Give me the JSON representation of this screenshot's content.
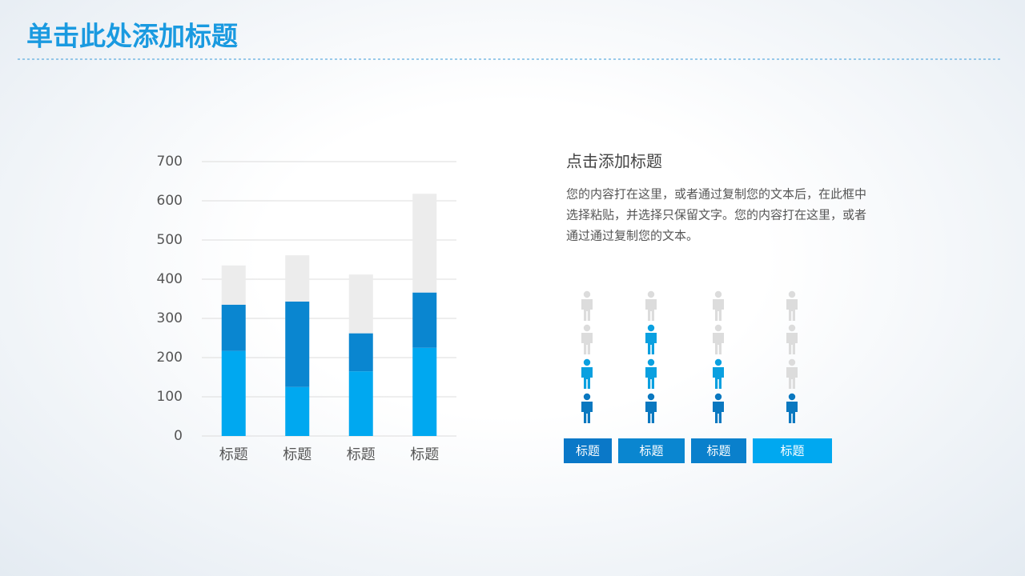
{
  "header": {
    "title": "单击此处添加标题"
  },
  "chart_data": {
    "type": "stacked_bar",
    "categories": [
      "标题",
      "标题",
      "标题",
      "标题"
    ],
    "series": [
      {
        "color": "#00a8f0",
        "values": [
          217,
          125,
          165,
          225
        ]
      },
      {
        "color": "#0a86d0",
        "values": [
          118,
          218,
          97,
          141
        ]
      },
      {
        "color": "#ececec",
        "values": [
          100,
          118,
          150,
          252
        ]
      }
    ],
    "ylim": [
      0,
      700
    ],
    "yticks": [
      0,
      100,
      200,
      300,
      400,
      500,
      600,
      700
    ],
    "grid": true
  },
  "text_block": {
    "heading": "点击添加标题",
    "lines": [
      "您的内容打在这里，或者通过复制您的文本后，在此框中",
      "选择粘贴，并选择只保留文字。您的内容打在这里，或者",
      "通过通过复制您的文本。"
    ]
  },
  "icon_columns": {
    "per_column": 4,
    "dark_color": "#0a78c0",
    "mid_color": "#0aa0e0",
    "empty_color": "#dcdcdc",
    "columns": [
      {
        "label": "标题",
        "dark": 1,
        "mid": 1
      },
      {
        "label": "标题",
        "dark": 1,
        "mid": 2
      },
      {
        "label": "标题",
        "dark": 1,
        "mid": 1
      },
      {
        "label": "标题",
        "dark": 1,
        "mid": 0
      }
    ]
  }
}
